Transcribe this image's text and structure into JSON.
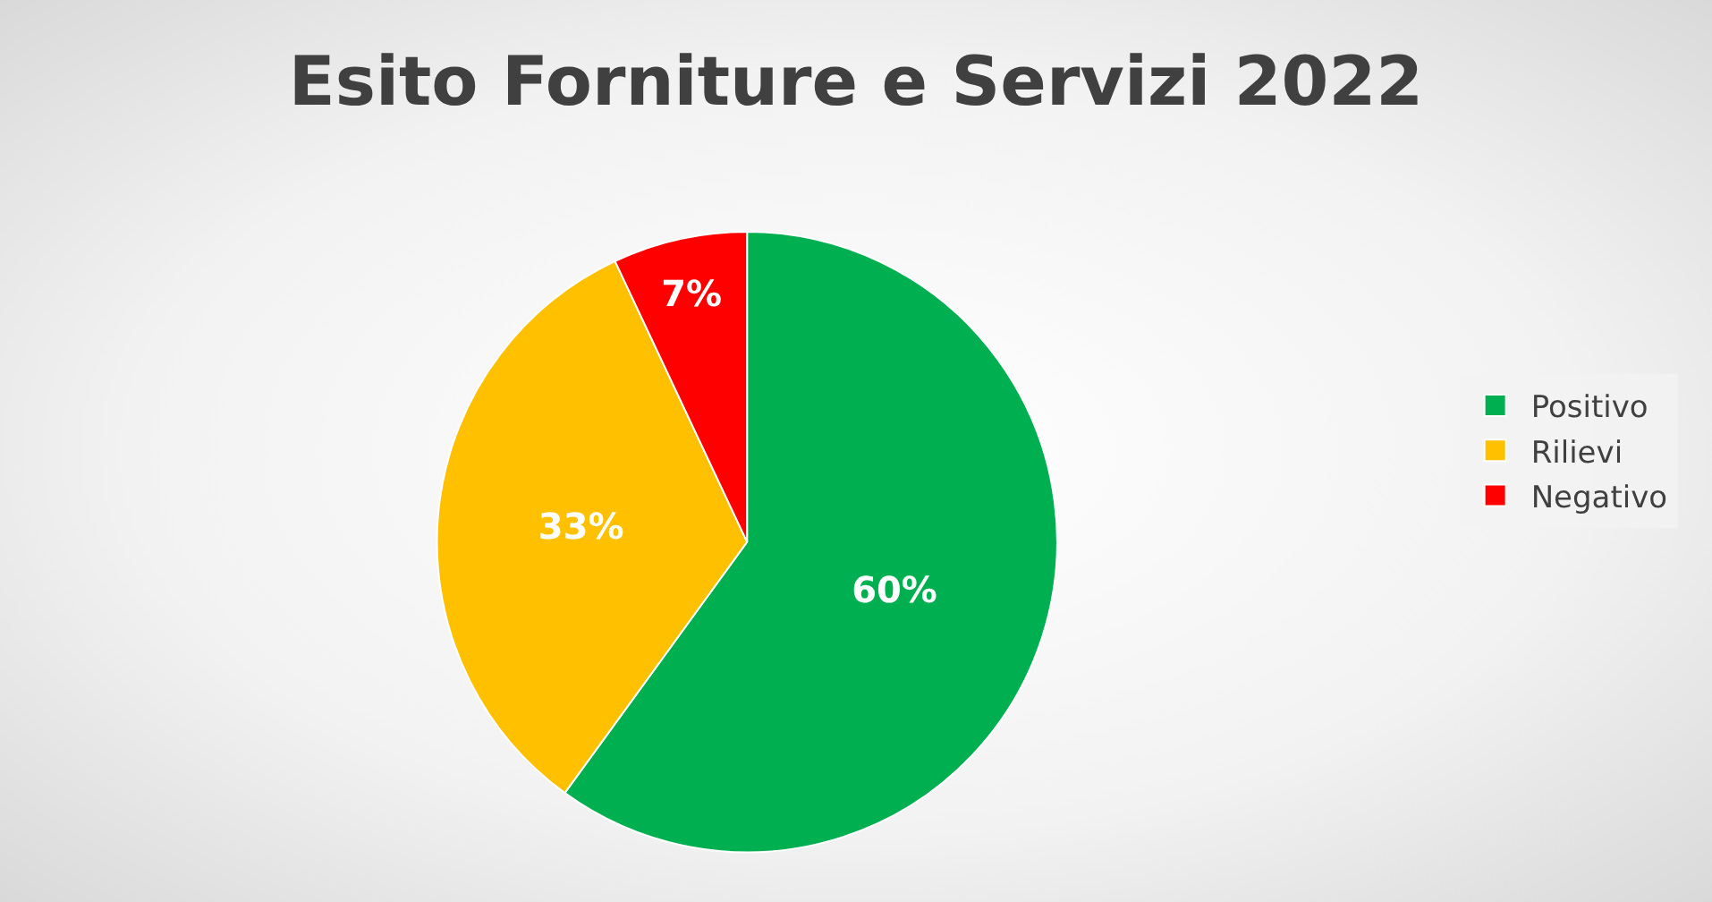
{
  "chart_data": {
    "type": "pie",
    "title": "Esito Forniture e Servizi 2022",
    "categories": [
      "Positivo",
      "Rilievi",
      "Negativo"
    ],
    "values": [
      60,
      33,
      7
    ],
    "colors": [
      "#00b050",
      "#ffc000",
      "#ff0000"
    ],
    "value_labels": [
      "60%",
      "33%",
      "7%"
    ],
    "legend": "right"
  }
}
